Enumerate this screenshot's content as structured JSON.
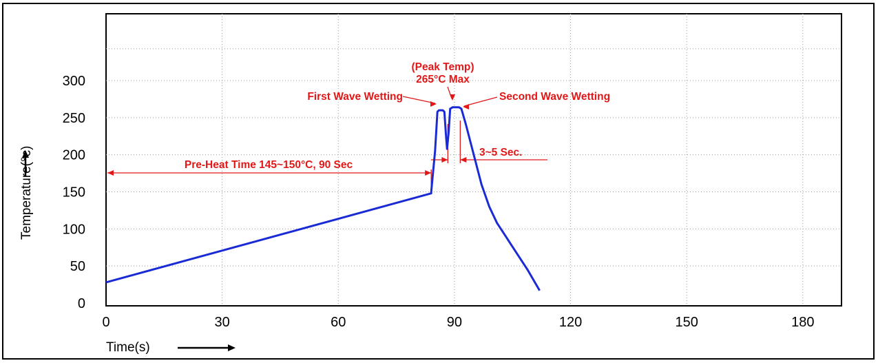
{
  "chart_data": {
    "type": "line",
    "title": "",
    "xlabel": "Time(s)",
    "ylabel": "Temperature(°c)",
    "xlim": [
      0,
      190
    ],
    "ylim": [
      0,
      300
    ],
    "x_ticks": [
      0,
      30,
      60,
      90,
      120,
      150,
      180
    ],
    "y_ticks": [
      0,
      50,
      100,
      150,
      200,
      250,
      300
    ],
    "grid": true,
    "series": [
      {
        "color": "#1a2bd6",
        "points": [
          [
            0,
            28
          ],
          [
            84,
            148
          ],
          [
            84,
            150
          ],
          [
            85,
            205
          ],
          [
            85.6,
            258
          ],
          [
            86,
            260
          ],
          [
            87,
            260
          ],
          [
            87.4,
            258
          ],
          [
            87.8,
            228
          ],
          [
            88.1,
            208
          ],
          [
            88.5,
            230
          ],
          [
            88.9,
            262
          ],
          [
            89.5,
            264
          ],
          [
            91.2,
            264
          ],
          [
            91.8,
            262
          ],
          [
            93,
            240
          ],
          [
            95,
            200
          ],
          [
            97,
            160
          ],
          [
            99,
            130
          ],
          [
            101,
            108
          ],
          [
            103,
            92
          ],
          [
            105,
            76
          ],
          [
            107,
            60
          ],
          [
            109,
            44
          ],
          [
            112,
            17
          ]
        ]
      }
    ],
    "annotations": {
      "preheat": "Pre-Heat Time 145~150°C, 90 Sec",
      "first_wave": "First Wave Wetting",
      "peak_line1": "(Peak Temp)",
      "peak_line2": "265°C Max",
      "second_wave": "Second Wave Wetting",
      "duration": "3~5 Sec."
    },
    "annotation_color": "#e01818"
  }
}
